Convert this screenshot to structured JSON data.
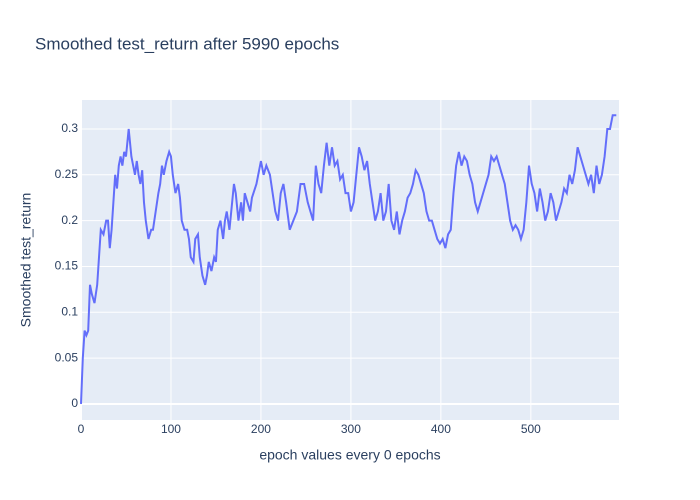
{
  "chart_data": {
    "type": "line",
    "title": "Smoothed test_return after 5990 epochs",
    "x_label": "epoch values every 0 epochs",
    "y_label": "Smoothed test_return",
    "xlim": [
      0,
      598
    ],
    "ylim": [
      -0.0175,
      0.3316
    ],
    "xticks": [
      0,
      100,
      200,
      300,
      400,
      500
    ],
    "yticks": [
      0,
      0.05,
      0.1,
      0.15,
      0.2,
      0.25,
      0.3
    ],
    "grid": true,
    "series": [
      {
        "color": "#636efa",
        "x": [
          0,
          2,
          4,
          6,
          8,
          10,
          12,
          15,
          18,
          20,
          22,
          25,
          28,
          30,
          32,
          34,
          36,
          38,
          40,
          42,
          44,
          46,
          48,
          50,
          53,
          56,
          58,
          60,
          62,
          64,
          66,
          68,
          70,
          72,
          75,
          78,
          80,
          83,
          86,
          88,
          90,
          92,
          95,
          98,
          100,
          102,
          105,
          108,
          110,
          112,
          115,
          118,
          120,
          122,
          125,
          127,
          130,
          132,
          135,
          138,
          140,
          142,
          145,
          148,
          150,
          152,
          155,
          158,
          160,
          162,
          165,
          168,
          170,
          172,
          175,
          178,
          180,
          182,
          185,
          188,
          190,
          195,
          200,
          203,
          206,
          210,
          213,
          216,
          219,
          222,
          225,
          228,
          232,
          236,
          240,
          244,
          248,
          252,
          255,
          258,
          261,
          264,
          267,
          270,
          273,
          276,
          279,
          282,
          285,
          288,
          291,
          294,
          297,
          300,
          303,
          306,
          309,
          312,
          315,
          318,
          321,
          324,
          327,
          330,
          333,
          336,
          339,
          342,
          345,
          348,
          351,
          354,
          357,
          360,
          363,
          366,
          369,
          372,
          375,
          378,
          381,
          384,
          387,
          390,
          393,
          396,
          399,
          402,
          405,
          408,
          411,
          414,
          417,
          420,
          423,
          426,
          429,
          432,
          435,
          438,
          441,
          444,
          447,
          450,
          453,
          456,
          459,
          462,
          465,
          468,
          471,
          474,
          477,
          480,
          483,
          486,
          489,
          492,
          495,
          498,
          501,
          504,
          507,
          510,
          513,
          516,
          519,
          522,
          525,
          528,
          531,
          534,
          537,
          540,
          543,
          546,
          549,
          552,
          555,
          558,
          561,
          564,
          567,
          570,
          573,
          576,
          579,
          582,
          585,
          588,
          591,
          595
        ],
        "values": [
          0,
          0.05,
          0.08,
          0.075,
          0.08,
          0.13,
          0.12,
          0.11,
          0.13,
          0.16,
          0.19,
          0.185,
          0.2,
          0.2,
          0.17,
          0.19,
          0.22,
          0.25,
          0.235,
          0.26,
          0.27,
          0.26,
          0.275,
          0.27,
          0.3,
          0.27,
          0.26,
          0.25,
          0.265,
          0.25,
          0.24,
          0.255,
          0.22,
          0.2,
          0.18,
          0.19,
          0.19,
          0.21,
          0.23,
          0.24,
          0.26,
          0.25,
          0.265,
          0.275,
          0.27,
          0.25,
          0.23,
          0.24,
          0.225,
          0.2,
          0.19,
          0.19,
          0.18,
          0.16,
          0.155,
          0.18,
          0.185,
          0.16,
          0.14,
          0.13,
          0.14,
          0.155,
          0.145,
          0.16,
          0.155,
          0.19,
          0.2,
          0.18,
          0.2,
          0.21,
          0.19,
          0.22,
          0.24,
          0.23,
          0.2,
          0.22,
          0.2,
          0.23,
          0.22,
          0.21,
          0.225,
          0.24,
          0.265,
          0.25,
          0.26,
          0.25,
          0.23,
          0.21,
          0.2,
          0.23,
          0.24,
          0.22,
          0.19,
          0.2,
          0.21,
          0.24,
          0.24,
          0.22,
          0.21,
          0.2,
          0.26,
          0.24,
          0.23,
          0.26,
          0.285,
          0.26,
          0.28,
          0.26,
          0.265,
          0.245,
          0.25,
          0.23,
          0.23,
          0.21,
          0.22,
          0.25,
          0.28,
          0.27,
          0.255,
          0.265,
          0.24,
          0.22,
          0.2,
          0.21,
          0.23,
          0.2,
          0.21,
          0.24,
          0.2,
          0.19,
          0.21,
          0.185,
          0.2,
          0.21,
          0.225,
          0.23,
          0.24,
          0.255,
          0.25,
          0.24,
          0.23,
          0.21,
          0.2,
          0.2,
          0.19,
          0.18,
          0.175,
          0.18,
          0.17,
          0.185,
          0.19,
          0.23,
          0.26,
          0.275,
          0.26,
          0.27,
          0.265,
          0.25,
          0.24,
          0.22,
          0.21,
          0.22,
          0.23,
          0.24,
          0.25,
          0.27,
          0.265,
          0.27,
          0.26,
          0.25,
          0.24,
          0.22,
          0.2,
          0.19,
          0.195,
          0.19,
          0.18,
          0.19,
          0.22,
          0.26,
          0.24,
          0.23,
          0.21,
          0.235,
          0.22,
          0.2,
          0.21,
          0.23,
          0.22,
          0.2,
          0.21,
          0.22,
          0.235,
          0.23,
          0.25,
          0.24,
          0.255,
          0.28,
          0.27,
          0.26,
          0.25,
          0.24,
          0.25,
          0.23,
          0.26,
          0.24,
          0.25,
          0.27,
          0.3,
          0.3,
          0.315,
          0.315
        ]
      }
    ]
  }
}
